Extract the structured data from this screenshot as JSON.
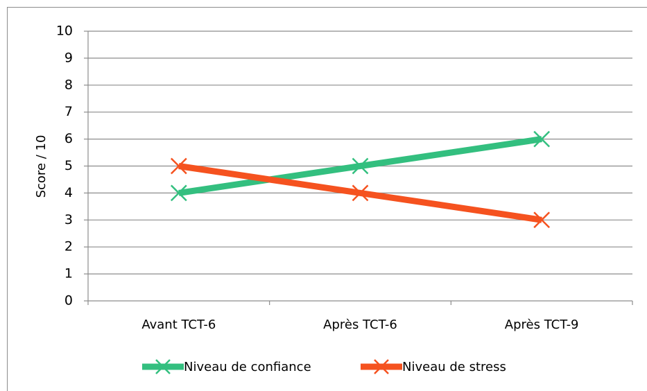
{
  "chart_data": {
    "type": "line",
    "y_label": "Score / 10",
    "categories": [
      "Avant TCT-6",
      "Après TCT-6",
      "Après TCT-9"
    ],
    "series": [
      {
        "name": "Niveau de confiance",
        "color": "#33bf7f",
        "values": [
          4,
          5,
          6
        ]
      },
      {
        "name": "Niveau de stress",
        "color": "#f5521f",
        "values": [
          5,
          4,
          3
        ]
      }
    ],
    "ylim": [
      0,
      10
    ],
    "yticks": [
      0,
      1,
      2,
      3,
      4,
      5,
      6,
      7,
      8,
      9,
      10
    ],
    "grid": true,
    "legend": "bottom"
  }
}
